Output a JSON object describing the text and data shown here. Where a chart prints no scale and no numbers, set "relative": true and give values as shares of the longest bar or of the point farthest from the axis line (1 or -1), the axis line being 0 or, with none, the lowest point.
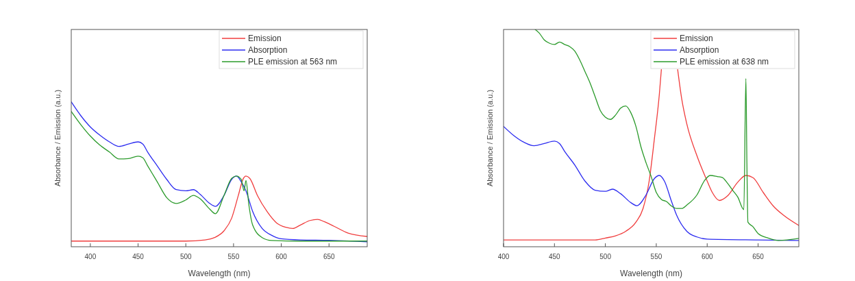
{
  "chart_data": [
    {
      "type": "line",
      "relative": true,
      "xlabel": "Wavelength (nm)",
      "ylabel": "Absorbance / Emission (a.u.)",
      "xlim": [
        380,
        690
      ],
      "xticks": [
        400,
        450,
        500,
        550,
        600,
        650
      ],
      "tick_labels": "x",
      "legend": "top right",
      "grid": false,
      "marker": "none",
      "line_style": "solid",
      "series": [
        {
          "name": "Emission",
          "color": "#f03c3c",
          "x": [
            380,
            500,
            520,
            530,
            540,
            548,
            555,
            560,
            563,
            567,
            575,
            585,
            595,
            605,
            612,
            620,
            630,
            638,
            645,
            655,
            670,
            690
          ],
          "values": [
            0.039,
            0.039,
            0.047,
            0.063,
            0.11,
            0.197,
            0.354,
            0.468,
            0.488,
            0.472,
            0.354,
            0.244,
            0.165,
            0.134,
            0.126,
            0.15,
            0.181,
            0.189,
            0.173,
            0.142,
            0.094,
            0.071
          ]
        },
        {
          "name": "Absorption",
          "color": "#2b2bf0",
          "x": [
            380,
            390,
            400,
            410,
            420,
            430,
            440,
            450,
            455,
            460,
            470,
            480,
            490,
            500,
            508,
            515,
            525,
            531,
            540,
            548,
            553,
            558,
            563,
            570,
            580,
            590,
            600,
            620,
            650,
            690
          ],
          "values": [
            1.0,
            0.905,
            0.827,
            0.77,
            0.724,
            0.693,
            0.709,
            0.724,
            0.709,
            0.654,
            0.559,
            0.465,
            0.394,
            0.386,
            0.394,
            0.362,
            0.299,
            0.279,
            0.354,
            0.465,
            0.488,
            0.449,
            0.386,
            0.244,
            0.126,
            0.079,
            0.055,
            0.047,
            0.044,
            0.034
          ]
        },
        {
          "name": "PLE emission at 563 nm",
          "color": "#2a9a2a",
          "x": [
            380,
            390,
            400,
            410,
            420,
            430,
            440,
            450,
            455,
            460,
            470,
            480,
            490,
            500,
            508,
            515,
            525,
            531,
            540,
            548,
            553,
            558,
            561,
            563,
            566,
            570,
            580,
            590,
            620,
            690
          ],
          "values": [
            0.934,
            0.843,
            0.764,
            0.701,
            0.654,
            0.606,
            0.609,
            0.625,
            0.614,
            0.559,
            0.449,
            0.339,
            0.299,
            0.323,
            0.354,
            0.331,
            0.26,
            0.228,
            0.354,
            0.472,
            0.488,
            0.465,
            0.386,
            0.457,
            0.291,
            0.15,
            0.063,
            0.043,
            0.039,
            0.039
          ]
        }
      ]
    },
    {
      "type": "line",
      "relative": true,
      "xlabel": "Wavelength (nm)",
      "ylabel": "Absorbance / Emission (a.u.)",
      "xlim": [
        400,
        690
      ],
      "xticks": [
        400,
        450,
        500,
        550,
        600,
        650
      ],
      "tick_labels": "x",
      "legend": "top right",
      "grid": false,
      "marker": "none",
      "line_style": "solid",
      "series": [
        {
          "name": "Emission",
          "color": "#f03c3c",
          "x": [
            400,
            490,
            500,
            510,
            520,
            530,
            537,
            543,
            548,
            553,
            555,
            557,
            570,
            571,
            575,
            580,
            590,
            600,
            605,
            612,
            620,
            630,
            638,
            645,
            655,
            665,
            675,
            690
          ],
          "values": [
            0.031,
            0.031,
            0.04,
            0.05,
            0.071,
            0.113,
            0.176,
            0.302,
            0.491,
            0.701,
            0.816,
            null,
            null,
            0.816,
            0.68,
            0.565,
            0.418,
            0.302,
            0.25,
            0.213,
            0.234,
            0.297,
            0.328,
            0.318,
            0.25,
            0.187,
            0.145,
            0.098
          ]
        },
        {
          "name": "Absorption",
          "color": "#2b2bf0",
          "x": [
            400,
            410,
            420,
            430,
            440,
            450,
            455,
            460,
            470,
            480,
            490,
            500,
            507,
            515,
            525,
            531,
            540,
            548,
            553,
            558,
            565,
            570,
            580,
            590,
            600,
            650,
            690
          ],
          "values": [
            0.554,
            0.512,
            0.481,
            0.465,
            0.475,
            0.486,
            0.475,
            0.439,
            0.376,
            0.302,
            0.26,
            0.255,
            0.265,
            0.244,
            0.203,
            0.189,
            0.239,
            0.313,
            0.328,
            0.302,
            0.208,
            0.145,
            0.071,
            0.045,
            0.035,
            0.031,
            0.029
          ]
        },
        {
          "name": "PLE emission at 638 nm",
          "color": "#2a9a2a",
          "x": [
            431,
            435,
            440,
            445,
            450,
            455,
            460,
            465,
            470,
            475,
            480,
            485,
            490,
            495,
            500,
            505,
            510,
            515,
            520,
            525,
            530,
            535,
            540,
            545,
            550,
            555,
            560,
            565,
            570,
            575,
            580,
            590,
            597,
            603,
            610,
            615,
            620,
            625,
            630,
            636,
            638,
            639,
            640,
            645,
            650,
            660,
            670,
            690
          ],
          "values": [
            1.0,
            0.984,
            0.952,
            0.937,
            0.931,
            0.942,
            0.931,
            0.921,
            0.9,
            0.858,
            0.806,
            0.753,
            0.69,
            0.627,
            0.596,
            0.586,
            0.606,
            0.638,
            0.648,
            0.617,
            0.554,
            0.459,
            0.386,
            0.323,
            0.25,
            0.218,
            0.208,
            0.187,
            0.176,
            0.176,
            0.192,
            0.239,
            0.302,
            0.328,
            0.323,
            0.318,
            0.292,
            0.26,
            0.229,
            0.171,
            0.774,
            0.386,
            0.113,
            0.092,
            0.061,
            0.04,
            0.029,
            0.038
          ]
        }
      ]
    }
  ]
}
